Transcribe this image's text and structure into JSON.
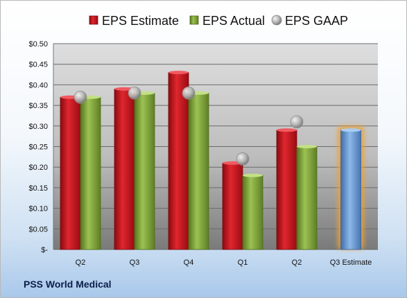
{
  "company": "PSS World Medical",
  "colors": {
    "estimate": "#c0141c",
    "actual": "#7ea13a",
    "gaap": "#b8b8b8",
    "estimate_future": "#6e9fd8",
    "glow": "#f0a030"
  },
  "chart_data": {
    "type": "bar",
    "categories": [
      "Q2",
      "Q3",
      "Q4",
      "Q1",
      "Q2",
      "Q3 Estimate"
    ],
    "series": [
      {
        "name": "EPS Estimate",
        "values": [
          0.37,
          0.39,
          0.43,
          0.21,
          0.29,
          0.29
        ]
      },
      {
        "name": "EPS Actual",
        "values": [
          0.37,
          0.38,
          0.38,
          0.18,
          0.25,
          null
        ]
      },
      {
        "name": "EPS GAAP",
        "type": "scatter",
        "values": [
          0.37,
          0.38,
          0.38,
          0.22,
          0.31,
          null
        ]
      }
    ],
    "highlight_category": "Q3 Estimate",
    "yticks": [
      "$-",
      "$0.05",
      "$0.10",
      "$0.15",
      "$0.20",
      "$0.25",
      "$0.30",
      "$0.35",
      "$0.40",
      "$0.45",
      "$0.50"
    ],
    "ylim": [
      0,
      0.5
    ],
    "legend_position": "top",
    "grid": true
  }
}
